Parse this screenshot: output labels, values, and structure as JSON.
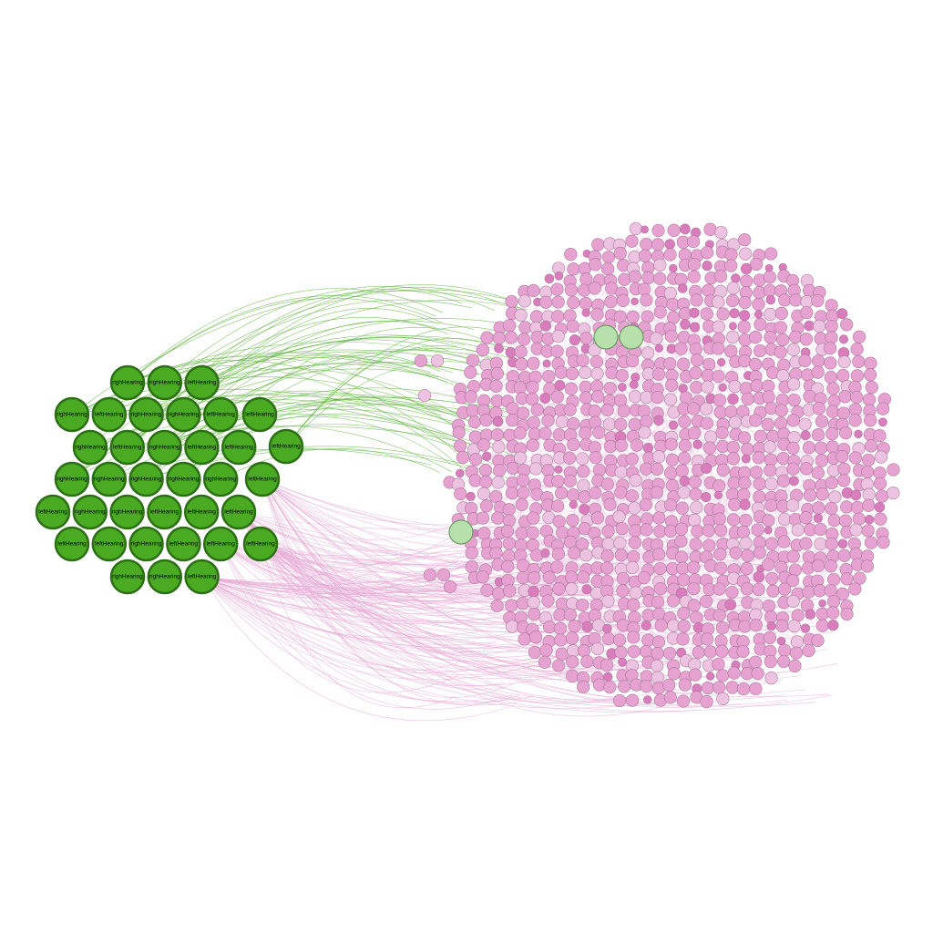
{
  "colors": {
    "background": "#ffffff",
    "green_fill": "#4aab23",
    "green_stroke": "#2b6f14",
    "green_edge": "#5cb33a",
    "pink_fill": "#e6a3d1",
    "pink_fill_light": "#ecc3e0",
    "pink_fill_dark": "#d97dbd",
    "pink_stroke": "#a1678f",
    "pink_edge": "#e7a9d6",
    "pale_green_fill": "#b8e0ad",
    "pale_green_stroke": "#6d9b63"
  },
  "cluster_left": {
    "rows": [
      [
        "righHearing",
        "righHearing",
        "leftHearing"
      ],
      [
        "righHearing",
        "leftHearing",
        "righHearing",
        "righHearing",
        "leftHearing",
        "leftHearing"
      ],
      [
        "righHearing",
        "leftHearing",
        "righHearing",
        "leftHearing",
        "leftHearing",
        "leftHearing"
      ],
      [
        "righHearing",
        "righHearing",
        "righHearing",
        "righHearing",
        "righHearing",
        "leftHearing"
      ],
      [
        "leftHearing",
        "righHearing",
        "righHearing",
        "leftHearing",
        "leftHearing",
        "leftHearing"
      ],
      [
        "leftHearing",
        "leftHearing",
        "righHearing",
        "leftHearing",
        "leftHearing",
        "leftHearing"
      ],
      [
        "righHearing",
        "righHearing",
        "leftHearing"
      ]
    ]
  }
}
